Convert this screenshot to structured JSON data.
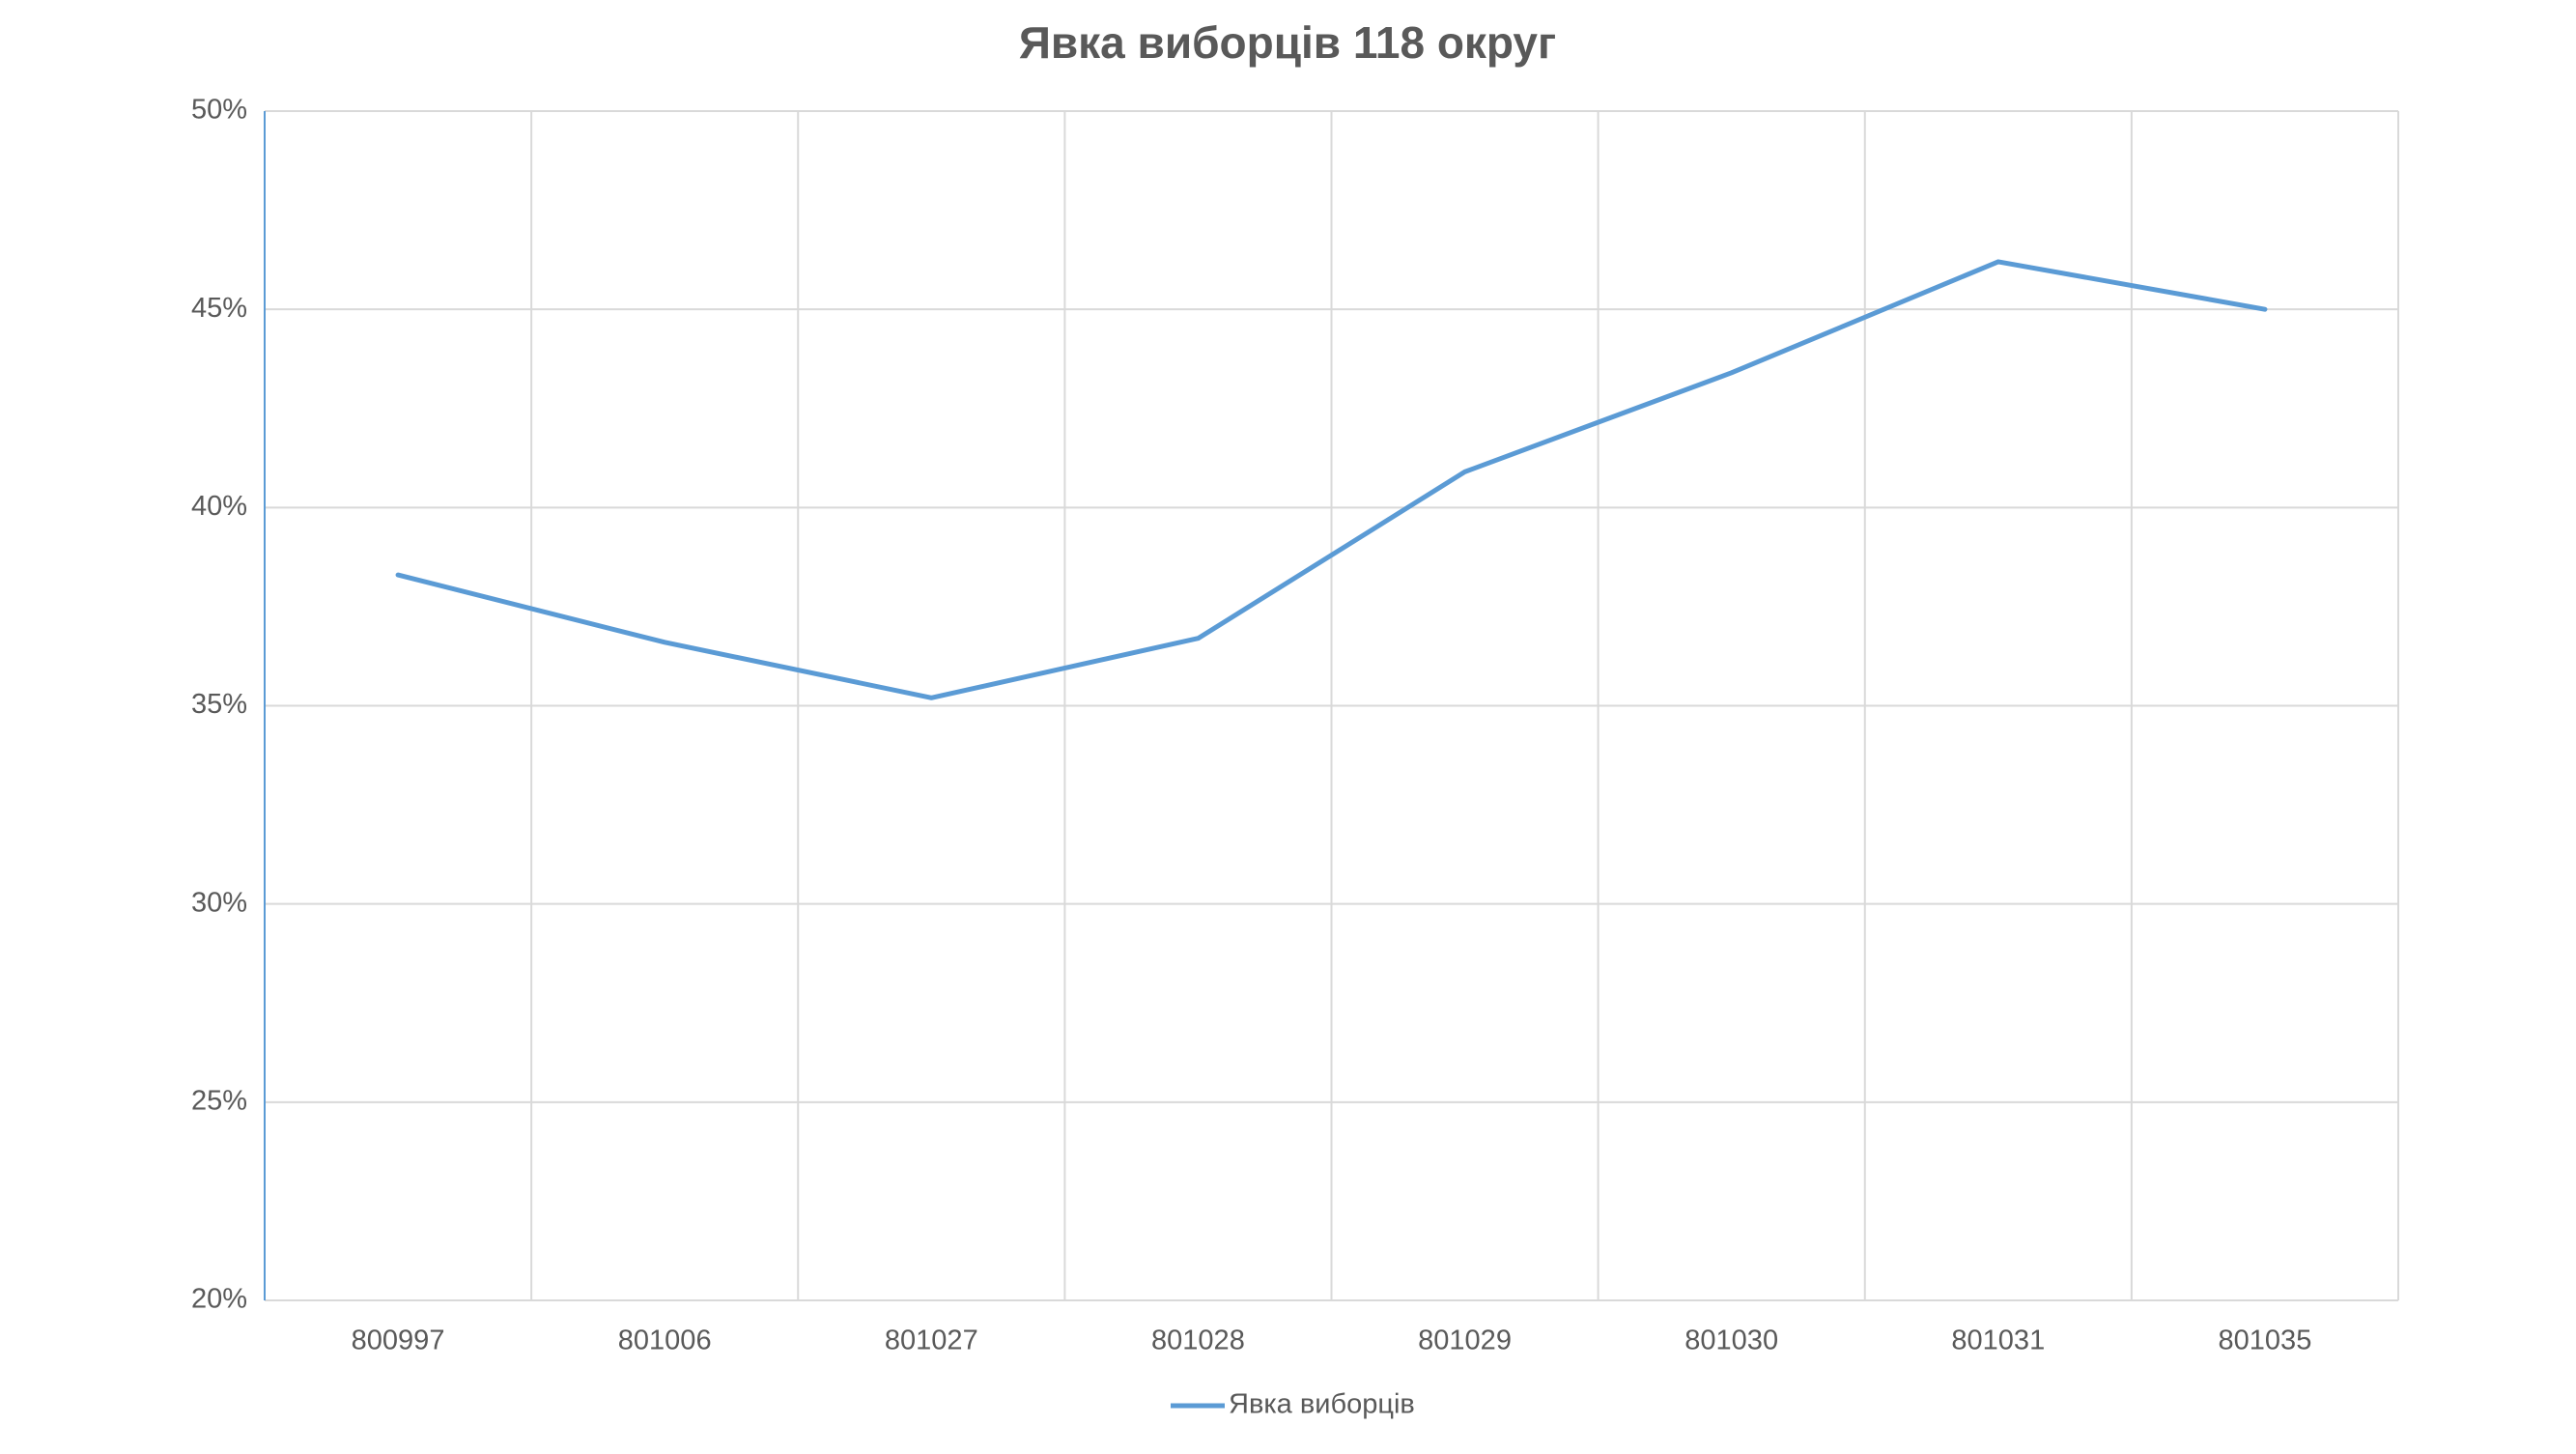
{
  "chart_data": {
    "type": "line",
    "title": "Явка виборців 118 округ",
    "categories": [
      "800997",
      "801006",
      "801027",
      "801028",
      "801029",
      "801030",
      "801031",
      "801035"
    ],
    "series": [
      {
        "name": "Явка виборців",
        "color": "#5b9bd5",
        "values": [
          38.3,
          36.6,
          35.2,
          36.7,
          40.9,
          43.4,
          46.2,
          45.0
        ]
      }
    ],
    "ylim": [
      20,
      50
    ],
    "yticks": [
      {
        "value": 20,
        "label": "20%"
      },
      {
        "value": 25,
        "label": "25%"
      },
      {
        "value": 30,
        "label": "30%"
      },
      {
        "value": 35,
        "label": "35%"
      },
      {
        "value": 40,
        "label": "40%"
      },
      {
        "value": 45,
        "label": "45%"
      },
      {
        "value": 50,
        "label": "50%"
      }
    ],
    "grid": true,
    "legend": "bottom"
  }
}
